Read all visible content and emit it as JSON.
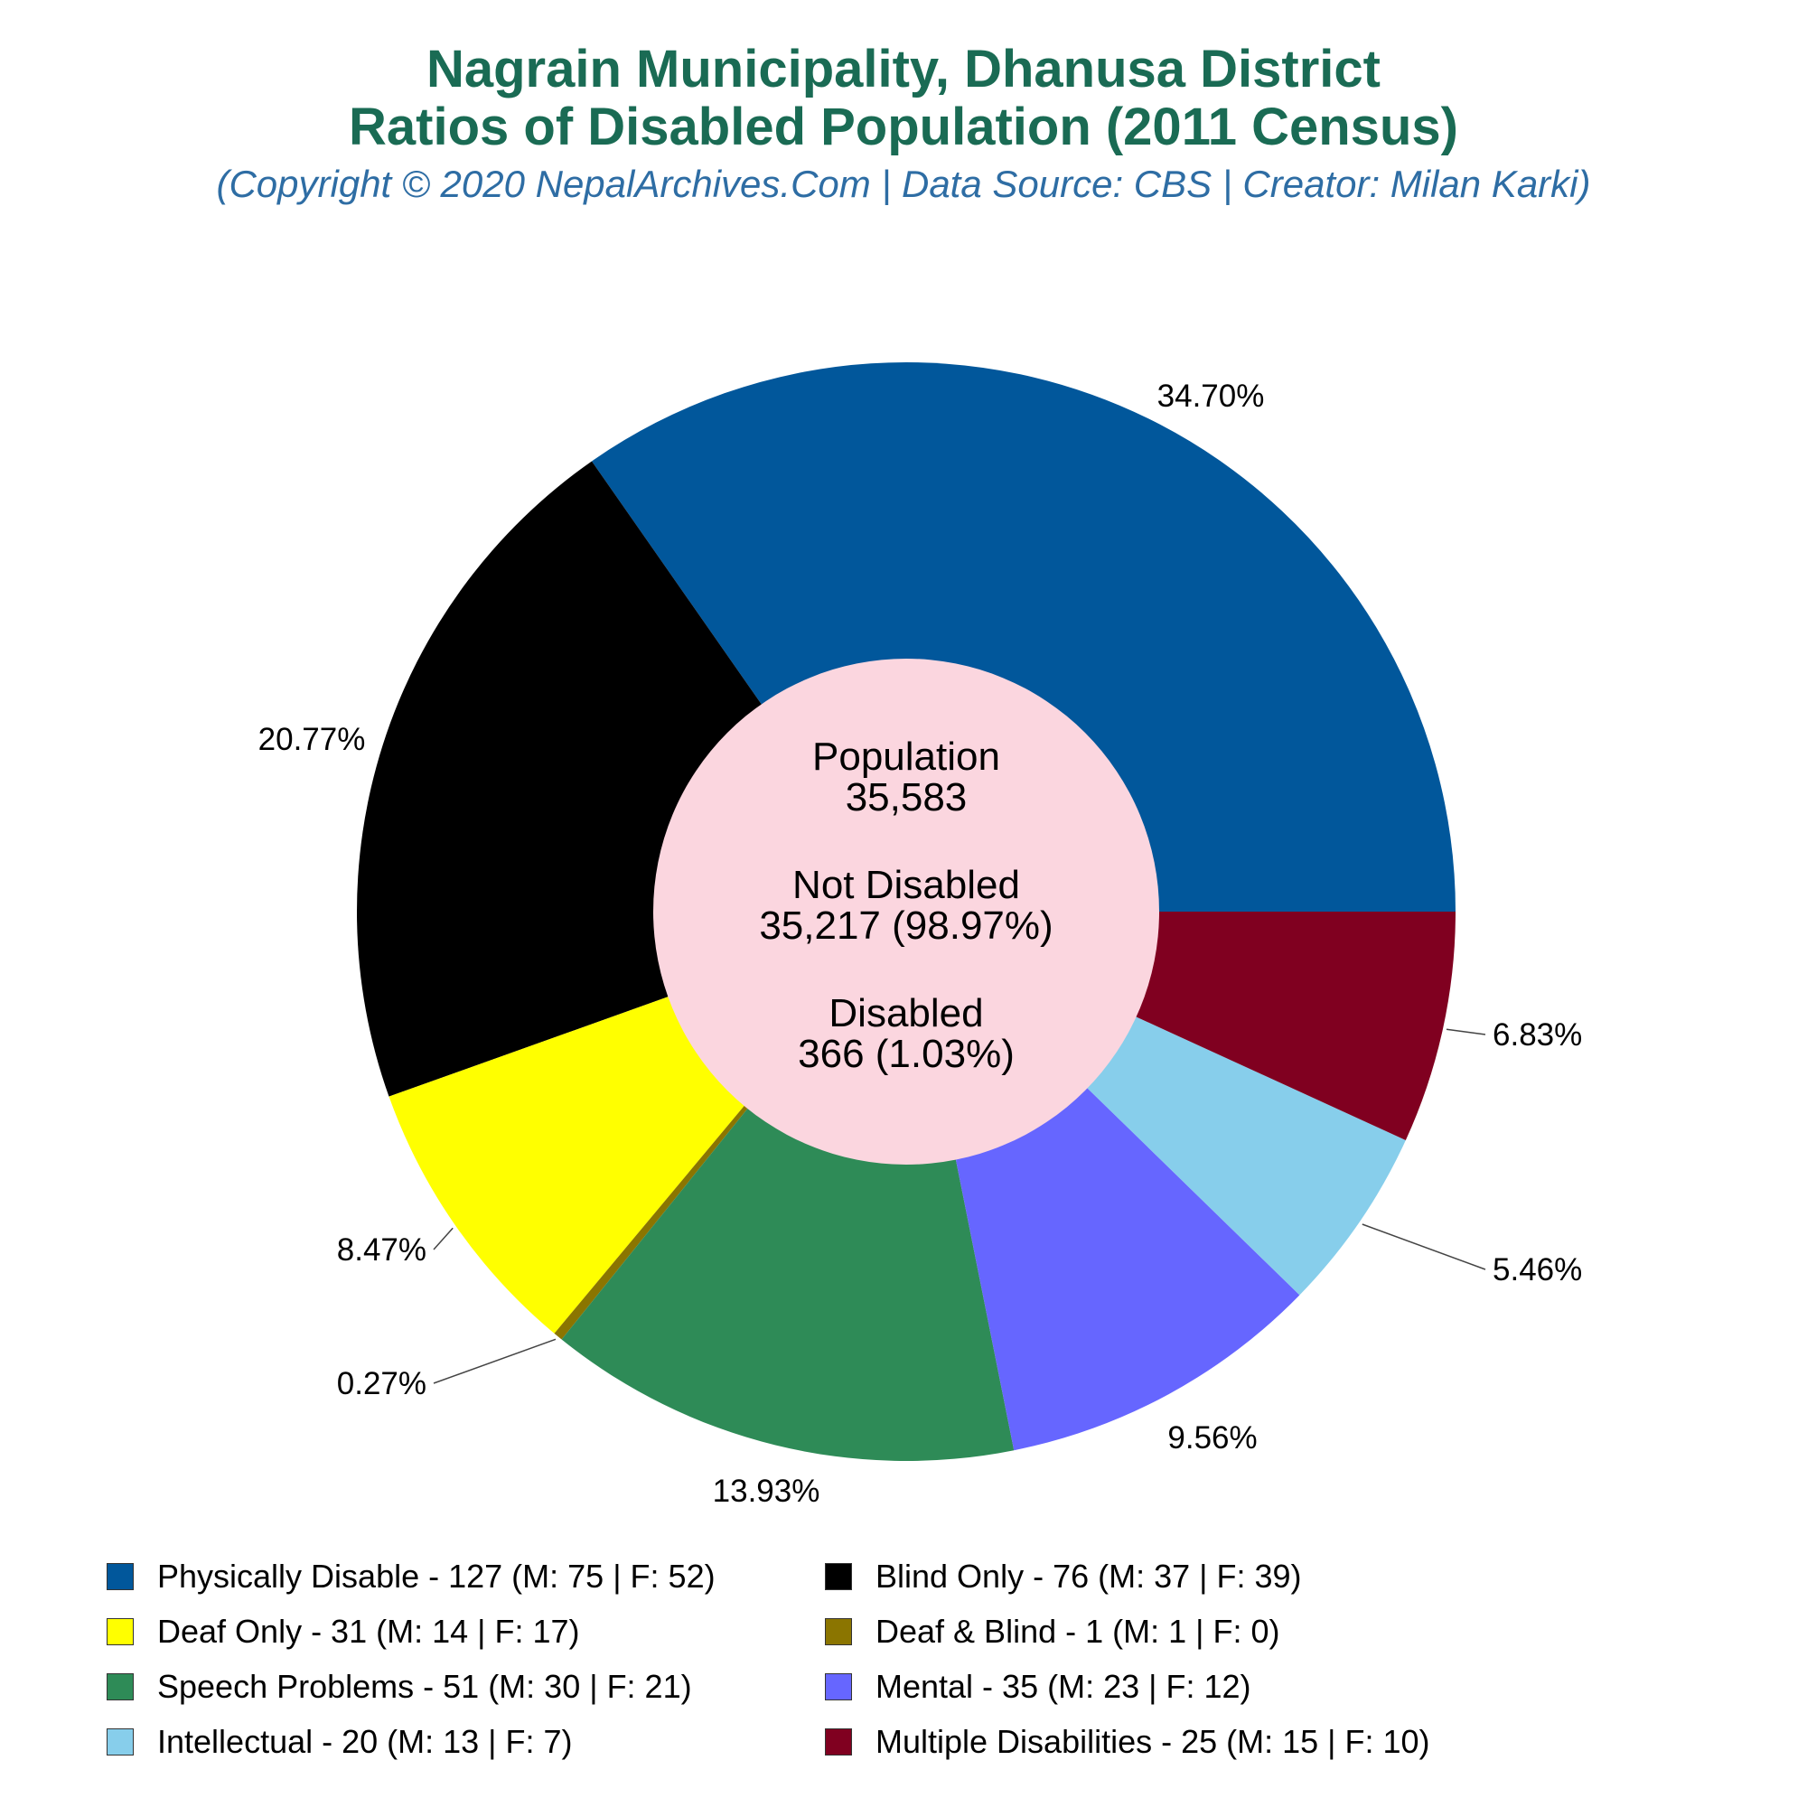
{
  "title_line1": "Nagrain Municipality, Dhanusa District",
  "title_line2": "Ratios of Disabled Population (2011 Census)",
  "subtitle": "(Copyright © 2020 NepalArchives.Com | Data Source: CBS | Creator: Milan Karki)",
  "center": {
    "population_label": "Population",
    "population_value": "35,583",
    "not_disabled_label": "Not Disabled",
    "not_disabled_value": "35,217 (98.97%)",
    "disabled_label": "Disabled",
    "disabled_value": "366 (1.03%)",
    "color": "#fbd6df"
  },
  "chart_data": {
    "type": "pie",
    "title": "Ratios of Disabled Population (2011 Census)",
    "legend_position": "bottom",
    "slices": [
      {
        "label": "Physically Disable - 127 (M: 75 | F: 52)",
        "value": 127,
        "percent": "34.70%",
        "color": "#01579b"
      },
      {
        "label": "Blind Only - 76 (M: 37 | F: 39)",
        "value": 76,
        "percent": "20.77%",
        "color": "#000000"
      },
      {
        "label": "Deaf Only - 31 (M: 14 | F: 17)",
        "value": 31,
        "percent": "8.47%",
        "color": "#ffff00"
      },
      {
        "label": "Deaf & Blind - 1 (M: 1 | F: 0)",
        "value": 1,
        "percent": "0.27%",
        "color": "#8b7500"
      },
      {
        "label": "Speech Problems - 51 (M: 30 | F: 21)",
        "value": 51,
        "percent": "13.93%",
        "color": "#2e8b57"
      },
      {
        "label": "Mental - 35 (M: 23 | F: 12)",
        "value": 35,
        "percent": "9.56%",
        "color": "#6666ff"
      },
      {
        "label": "Intellectual - 20 (M: 13 | F: 7)",
        "value": 20,
        "percent": "5.46%",
        "color": "#87ceeb"
      },
      {
        "label": "Multiple Disabilities - 25 (M: 15 | F: 10)",
        "value": 25,
        "percent": "6.83%",
        "color": "#800020"
      }
    ]
  }
}
